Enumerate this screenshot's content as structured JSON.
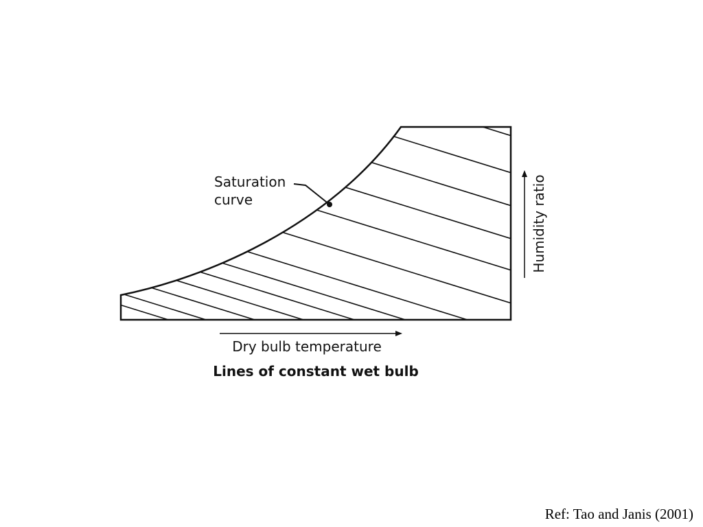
{
  "diagram": {
    "curve_label": [
      "Saturation",
      "curve"
    ],
    "y_axis_label": "Humidity ratio",
    "x_axis_label": "Dry bulb temperature",
    "caption": "Lines of constant wet bulb"
  },
  "footer": {
    "reference": "Ref: Tao and Janis (2001)"
  }
}
